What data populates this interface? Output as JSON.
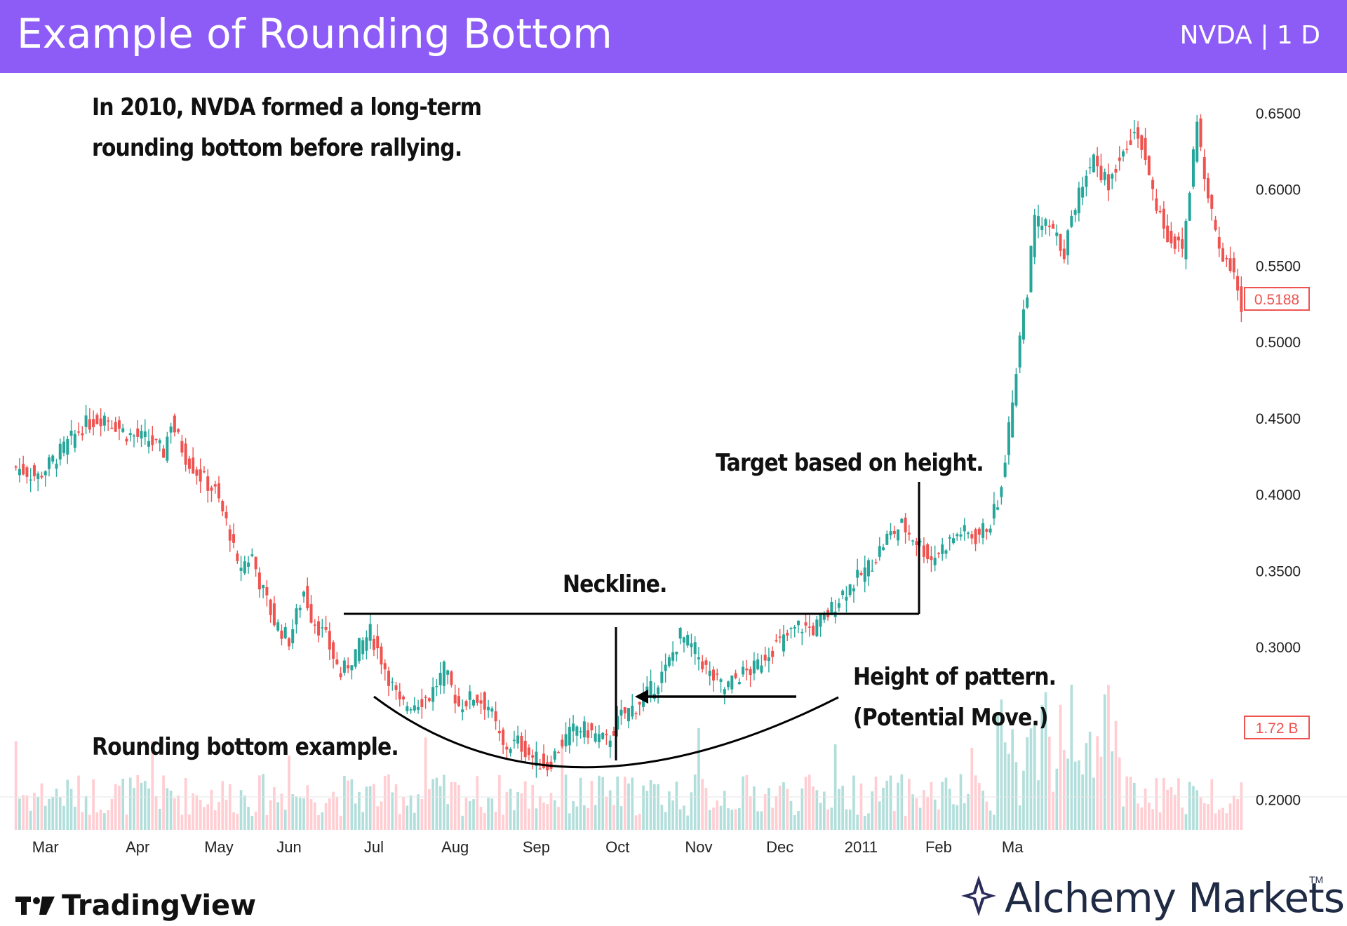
{
  "header": {
    "title": "Example of Rounding Bottom",
    "ticker": "NVDA | 1 D"
  },
  "annotations": {
    "intro_line1": "In 2010, NVDA formed a long-term",
    "intro_line2": "rounding bottom before rallying.",
    "target": "Target based on height.",
    "neckline": "Neckline.",
    "height_line1": "Height of pattern.",
    "height_line2": "(Potential Move.)",
    "rounding": "Rounding bottom example."
  },
  "footer": {
    "tradingview": "TradingView",
    "brand": "Alchemy Markets",
    "trademark": "TM"
  },
  "colors": {
    "header": "#8d5cf6",
    "up": "#26a69a",
    "down": "#ef5350",
    "volume_up": "#b2dfdb",
    "volume_down": "#ffcdd2",
    "last_price": "#ef5350"
  },
  "chart_data": {
    "type": "candlestick",
    "symbol": "NVDA",
    "interval": "1 D",
    "x_tick_labels": [
      "Mar",
      "Apr",
      "May",
      "Jun",
      "Jul",
      "Aug",
      "Sep",
      "Oct",
      "Nov",
      "Dec",
      "2011",
      "Feb",
      "Ma"
    ],
    "y_tick_labels": [
      "0.6500",
      "0.6000",
      "0.5500",
      "0.5000",
      "0.4500",
      "0.4000",
      "0.3500",
      "0.3000",
      "0.2500",
      "0.2000"
    ],
    "ylim": [
      0.18,
      0.66
    ],
    "last_price": "0.5188",
    "last_volume": "1.72 B",
    "neckline_level": 0.313,
    "pattern_low": 0.212,
    "close_path": [
      [
        0,
        0.418
      ],
      [
        6,
        0.412
      ],
      [
        12,
        0.428
      ],
      [
        18,
        0.445
      ],
      [
        24,
        0.452
      ],
      [
        30,
        0.44
      ],
      [
        36,
        0.436
      ],
      [
        40,
        0.428
      ],
      [
        42,
        0.448
      ],
      [
        46,
        0.425
      ],
      [
        50,
        0.412
      ],
      [
        54,
        0.402
      ],
      [
        58,
        0.375
      ],
      [
        60,
        0.352
      ],
      [
        64,
        0.36
      ],
      [
        66,
        0.343
      ],
      [
        70,
        0.317
      ],
      [
        74,
        0.305
      ],
      [
        78,
        0.337
      ],
      [
        80,
        0.321
      ],
      [
        84,
        0.306
      ],
      [
        88,
        0.282
      ],
      [
        92,
        0.297
      ],
      [
        96,
        0.31
      ],
      [
        100,
        0.287
      ],
      [
        104,
        0.262
      ],
      [
        108,
        0.264
      ],
      [
        112,
        0.268
      ],
      [
        116,
        0.285
      ],
      [
        120,
        0.262
      ],
      [
        124,
        0.268
      ],
      [
        128,
        0.262
      ],
      [
        132,
        0.234
      ],
      [
        136,
        0.238
      ],
      [
        140,
        0.228
      ],
      [
        144,
        0.222
      ],
      [
        148,
        0.238
      ],
      [
        152,
        0.248
      ],
      [
        156,
        0.244
      ],
      [
        160,
        0.238
      ],
      [
        164,
        0.255
      ],
      [
        168,
        0.262
      ],
      [
        172,
        0.272
      ],
      [
        176,
        0.285
      ],
      [
        180,
        0.308
      ],
      [
        184,
        0.298
      ],
      [
        188,
        0.282
      ],
      [
        192,
        0.273
      ],
      [
        196,
        0.282
      ],
      [
        200,
        0.286
      ],
      [
        204,
        0.298
      ],
      [
        208,
        0.305
      ],
      [
        212,
        0.314
      ],
      [
        216,
        0.312
      ],
      [
        220,
        0.322
      ],
      [
        224,
        0.336
      ],
      [
        228,
        0.345
      ],
      [
        232,
        0.356
      ],
      [
        236,
        0.372
      ],
      [
        240,
        0.38
      ],
      [
        244,
        0.37
      ],
      [
        248,
        0.358
      ],
      [
        252,
        0.368
      ],
      [
        256,
        0.376
      ],
      [
        260,
        0.372
      ],
      [
        264,
        0.382
      ],
      [
        266,
        0.396
      ],
      [
        268,
        0.425
      ],
      [
        270,
        0.462
      ],
      [
        272,
        0.505
      ],
      [
        274,
        0.535
      ],
      [
        276,
        0.58
      ],
      [
        280,
        0.575
      ],
      [
        284,
        0.56
      ],
      [
        288,
        0.6
      ],
      [
        292,
        0.622
      ],
      [
        296,
        0.602
      ],
      [
        300,
        0.63
      ],
      [
        304,
        0.638
      ],
      [
        308,
        0.598
      ],
      [
        312,
        0.57
      ],
      [
        316,
        0.56
      ],
      [
        318,
        0.6
      ],
      [
        320,
        0.648
      ],
      [
        322,
        0.605
      ],
      [
        326,
        0.562
      ],
      [
        330,
        0.548
      ],
      [
        332,
        0.519
      ]
    ],
    "month_positions": [
      8,
      33,
      55,
      74,
      97,
      119,
      141,
      163,
      185,
      207,
      229,
      250,
      270
    ],
    "x_total": 333
  }
}
